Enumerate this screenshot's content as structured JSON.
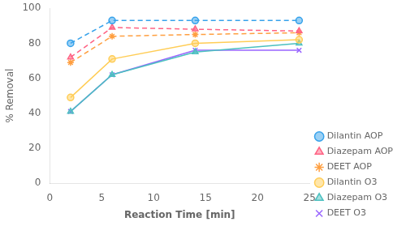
{
  "chart_data": {
    "type": "line",
    "xlabel": "Reaction Time [min]",
    "ylabel": "% Removal",
    "x": [
      2,
      6,
      14,
      24
    ],
    "series": [
      {
        "name": "Dilantin AOP",
        "values": [
          80,
          93,
          93,
          93
        ],
        "marker": "circle",
        "line_style": "dashed"
      },
      {
        "name": "Diazepam AOP",
        "values": [
          72,
          89,
          88,
          87
        ],
        "marker": "triangle",
        "line_style": "dashed"
      },
      {
        "name": "DEET AOP",
        "values": [
          69,
          84,
          85,
          86
        ],
        "marker": "star",
        "line_style": "dashed"
      },
      {
        "name": "Dilantin O3",
        "values": [
          49,
          71,
          80,
          82
        ],
        "marker": "circle",
        "line_style": "solid"
      },
      {
        "name": "Diazepam O3",
        "values": [
          41,
          62,
          75,
          80
        ],
        "marker": "triangle",
        "line_style": "solid"
      },
      {
        "name": "DEET O3",
        "values": [
          41,
          62,
          76,
          76
        ],
        "marker": "x",
        "line_style": "solid"
      }
    ],
    "xlim": [
      0,
      25
    ],
    "ylim": [
      0,
      100
    ],
    "xticks": [
      0,
      5,
      10,
      15,
      20,
      25
    ],
    "yticks": [
      0,
      20,
      40,
      60,
      80,
      100
    ],
    "grid": false,
    "legend": "lower right"
  }
}
